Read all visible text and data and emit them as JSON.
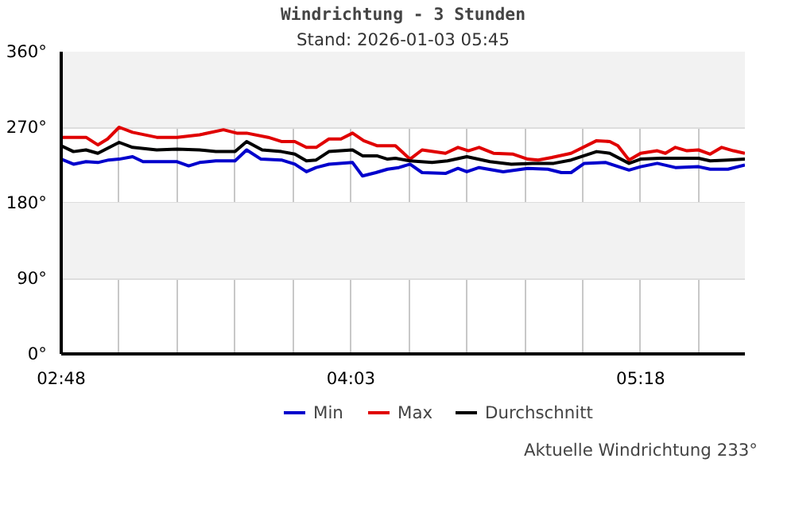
{
  "chart_data": {
    "type": "line",
    "title": "Windrichtung - 3 Stunden",
    "subtitle": "Stand: 2026-01-03 05:45",
    "xlim": [
      2.8,
      5.75
    ],
    "ylim": [
      0,
      360
    ],
    "xticks": [
      {
        "value": 2.8,
        "label": "02:48"
      },
      {
        "value": 3.05,
        "label": null
      },
      {
        "value": 3.3,
        "label": null
      },
      {
        "value": 3.55,
        "label": null
      },
      {
        "value": 3.8,
        "label": null
      },
      {
        "value": 4.05,
        "label": "04:03"
      },
      {
        "value": 4.3,
        "label": null
      },
      {
        "value": 4.55,
        "label": null
      },
      {
        "value": 4.8,
        "label": null
      },
      {
        "value": 5.05,
        "label": null
      },
      {
        "value": 5.3,
        "label": "05:18"
      },
      {
        "value": 5.55,
        "label": null
      }
    ],
    "yticks": [
      {
        "value": 0,
        "label": "0°"
      },
      {
        "value": 90,
        "label": "90°"
      },
      {
        "value": 180,
        "label": "180°"
      },
      {
        "value": 270,
        "label": "270°"
      },
      {
        "value": 360,
        "label": "360°"
      }
    ],
    "grid": true,
    "legend": "bottom",
    "marker": "none",
    "line_style": "solid",
    "bands": [
      {
        "axis": "y",
        "from": 90,
        "to": 180,
        "color": "#f2f2f2"
      },
      {
        "axis": "y",
        "from": 270,
        "to": 360,
        "color": "#f2f2f2"
      }
    ],
    "annotations": [
      "Aktuelle Windrichtung 233°"
    ],
    "series": [
      {
        "name": "Min",
        "color": "#0000cc",
        "x": [
          2.8,
          2.853,
          2.907,
          2.958,
          3.005,
          3.05,
          3.108,
          3.153,
          3.3,
          3.35,
          3.397,
          3.467,
          3.55,
          3.6,
          3.662,
          3.75,
          3.808,
          3.858,
          3.9,
          3.955,
          4.057,
          4.1,
          4.158,
          4.208,
          4.257,
          4.305,
          4.357,
          4.458,
          4.512,
          4.55,
          4.603,
          4.707,
          4.813,
          4.9,
          4.958,
          5.0,
          5.057,
          5.15,
          5.25,
          5.3,
          5.372,
          5.45,
          5.55,
          5.6,
          5.677,
          5.75
        ],
        "values": [
          232,
          226,
          229,
          228,
          231,
          232,
          235,
          229,
          229,
          224,
          228,
          230,
          230,
          243,
          232,
          231,
          226,
          217,
          222,
          226,
          228,
          212,
          216,
          220,
          222,
          226,
          216,
          215,
          221,
          217,
          222,
          217,
          221,
          220,
          216,
          216,
          227,
          228,
          219,
          223,
          227,
          222,
          223,
          220,
          220,
          225
        ]
      },
      {
        "name": "Max",
        "color": "#e00000",
        "x": [
          2.8,
          2.907,
          2.958,
          3.0,
          3.05,
          3.108,
          3.212,
          3.3,
          3.397,
          3.5,
          3.557,
          3.6,
          3.693,
          3.75,
          3.808,
          3.858,
          3.9,
          3.955,
          4.007,
          4.057,
          4.105,
          4.162,
          4.242,
          4.305,
          4.357,
          4.458,
          4.512,
          4.557,
          4.603,
          4.665,
          4.75,
          4.813,
          4.858,
          4.917,
          5.0,
          5.11,
          5.167,
          5.202,
          5.25,
          5.3,
          5.372,
          5.407,
          5.45,
          5.5,
          5.55,
          5.6,
          5.65,
          5.7,
          5.75
        ],
        "values": [
          258,
          258,
          249,
          256,
          270,
          264,
          258,
          258,
          261,
          267,
          263,
          263,
          258,
          253,
          253,
          246,
          246,
          256,
          256,
          263,
          254,
          248,
          248,
          232,
          243,
          239,
          246,
          242,
          246,
          239,
          238,
          232,
          231,
          234,
          239,
          254,
          253,
          248,
          231,
          239,
          242,
          239,
          246,
          242,
          243,
          238,
          246,
          242,
          239
        ]
      },
      {
        "name": "Durchschnitt",
        "color": "#000000",
        "x": [
          2.8,
          2.853,
          2.907,
          2.958,
          3.05,
          3.108,
          3.212,
          3.3,
          3.397,
          3.467,
          3.55,
          3.6,
          3.667,
          3.75,
          3.808,
          3.858,
          3.9,
          3.955,
          4.057,
          4.1,
          4.162,
          4.208,
          4.242,
          4.305,
          4.4,
          4.467,
          4.55,
          4.65,
          4.742,
          4.833,
          4.925,
          5.0,
          5.11,
          5.167,
          5.25,
          5.3,
          5.383,
          5.475,
          5.55,
          5.6,
          5.677,
          5.75
        ],
        "values": [
          248,
          241,
          243,
          239,
          252,
          246,
          243,
          244,
          243,
          241,
          241,
          253,
          243,
          241,
          238,
          230,
          231,
          241,
          243,
          236,
          236,
          232,
          233,
          230,
          228,
          230,
          235,
          229,
          226,
          227,
          227,
          231,
          241,
          239,
          227,
          232,
          233,
          233,
          233,
          230,
          231,
          232
        ]
      }
    ]
  }
}
